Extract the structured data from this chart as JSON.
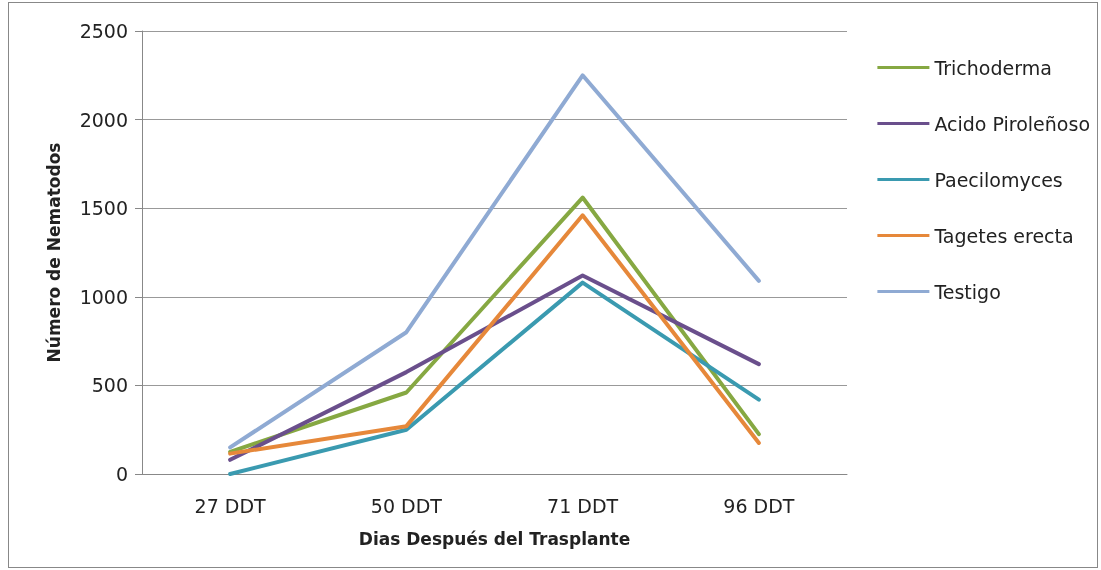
{
  "chart_data": {
    "type": "line",
    "xlabel": "Dias Después del Trasplante",
    "ylabel": "Número de Nematodos",
    "categories": [
      "27 DDT",
      "50 DDT",
      "71 DDT",
      "96 DDT"
    ],
    "series": [
      {
        "name": "Trichoderma",
        "color": "#86a842",
        "values": [
          125,
          460,
          1560,
          225
        ]
      },
      {
        "name": "Acido Piroleñoso",
        "color": "#6a4f8c",
        "values": [
          80,
          575,
          1120,
          620
        ]
      },
      {
        "name": "Paecilomyces",
        "color": "#3a9ab0",
        "values": [
          0,
          250,
          1080,
          420
        ]
      },
      {
        "name": "Tagetes erecta",
        "color": "#e6883a",
        "values": [
          115,
          270,
          1460,
          175
        ]
      },
      {
        "name": "Testigo",
        "color": "#8faad3",
        "values": [
          150,
          800,
          2250,
          1090
        ]
      }
    ],
    "ylim": [
      0,
      2500
    ],
    "yticks": [
      0,
      500,
      1000,
      1500,
      2000,
      2500
    ],
    "grid": "y",
    "legend": "right",
    "marker": "none",
    "line_style": "solid"
  }
}
